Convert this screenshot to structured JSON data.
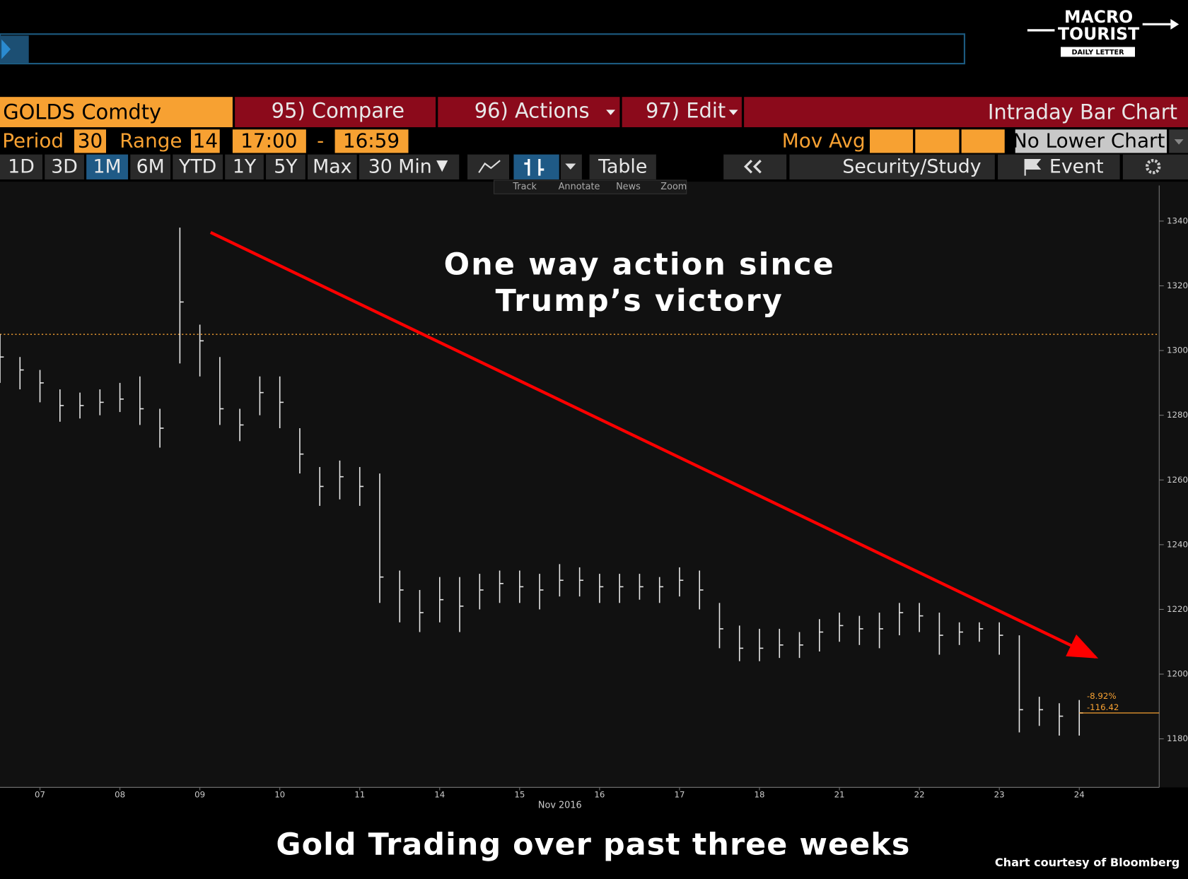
{
  "header": {
    "logo": [
      "MACRO",
      "TOURIST",
      "DAILY LETTER"
    ]
  },
  "toolbar": {
    "security": "GOLDS Comdty",
    "compare": "95) Compare",
    "actions": "96) Actions",
    "edit": "97) Edit",
    "view": "Intraday Bar Chart"
  },
  "settings": {
    "period_label": "Period",
    "period": "30",
    "range_label": "Range",
    "range": "14",
    "start": "17:00",
    "dash": "-",
    "end": "16:59",
    "mov_avg": "Mov Avg",
    "lower_chart": "No Lower Chart"
  },
  "buttons": [
    "1D",
    "3D",
    "1M",
    "6M",
    "YTD",
    "1Y",
    "5Y",
    "Max",
    "30 Min"
  ],
  "tools": [
    "Table",
    "Security/Study",
    "Event"
  ],
  "subtools": [
    "Track",
    "Annotate",
    "News",
    "Zoom"
  ],
  "chart_data": {
    "type": "bar",
    "annotation": [
      "One way action since",
      "Trump’s victory"
    ],
    "xlabel": "Nov 2016",
    "color": "#e6e6e6",
    "x": [
      -0.5,
      -0.25,
      0,
      0.25,
      0.5,
      0.75,
      1,
      1.25,
      1.5,
      1.75,
      2,
      2.25,
      2.5,
      2.75,
      3,
      3.25,
      3.5,
      3.75,
      4,
      4.25,
      4.5,
      4.75,
      5,
      5.25,
      5.5,
      5.75,
      6,
      6.25,
      6.5,
      6.75,
      7,
      7.25,
      7.5,
      7.75,
      8,
      8.25,
      8.5,
      8.75,
      9,
      9.25,
      9.5,
      9.75,
      10,
      10.25,
      10.5,
      10.75,
      11,
      11.25,
      11.5,
      11.75,
      12,
      12.25,
      12.5,
      12.75,
      13
    ],
    "values": [
      1298,
      1294,
      1290,
      1283,
      1283,
      1284,
      1285,
      1282,
      1276,
      1315,
      1303,
      1282,
      1277,
      1287,
      1284,
      1268,
      1258,
      1261,
      1258,
      1230,
      1226,
      1219,
      1223,
      1221,
      1226,
      1228,
      1227,
      1226,
      1229,
      1229,
      1227,
      1227,
      1227,
      1227,
      1229,
      1226,
      1214,
      1208,
      1208,
      1209,
      1209,
      1213,
      1215,
      1214,
      1214,
      1219,
      1218,
      1212,
      1213,
      1214,
      1212,
      1189,
      1189,
      1187,
      1188
    ],
    "high": [
      1305,
      1298,
      1294,
      1288,
      1287,
      1288,
      1290,
      1292,
      1282,
      1338,
      1308,
      1298,
      1282,
      1292,
      1292,
      1276,
      1264,
      1266,
      1264,
      1262,
      1232,
      1226,
      1230,
      1230,
      1231,
      1232,
      1232,
      1231,
      1234,
      1233,
      1231,
      1231,
      1231,
      1230,
      1233,
      1232,
      1222,
      1215,
      1214,
      1214,
      1213,
      1217,
      1219,
      1218,
      1219,
      1222,
      1222,
      1219,
      1216,
      1216,
      1216,
      1212,
      1193,
      1191,
      1192
    ],
    "low": [
      1290,
      1288,
      1284,
      1278,
      1279,
      1280,
      1281,
      1277,
      1270,
      1296,
      1292,
      1277,
      1272,
      1280,
      1276,
      1262,
      1252,
      1254,
      1252,
      1222,
      1216,
      1213,
      1216,
      1213,
      1220,
      1222,
      1222,
      1220,
      1224,
      1224,
      1222,
      1222,
      1223,
      1222,
      1224,
      1220,
      1208,
      1204,
      1204,
      1205,
      1205,
      1207,
      1210,
      1209,
      1208,
      1212,
      1213,
      1206,
      1209,
      1210,
      1206,
      1182,
      1184,
      1181,
      1181
    ],
    "xlim": [
      -0.5,
      14
    ],
    "ylim": [
      1165,
      1351
    ],
    "yticks": [
      1180,
      1200,
      1220,
      1240,
      1260,
      1280,
      1300,
      1320,
      1340
    ],
    "xticks": [
      {
        "value": 0,
        "label": "07"
      },
      {
        "value": 1,
        "label": "08"
      },
      {
        "value": 2,
        "label": "09"
      },
      {
        "value": 3,
        "label": "10"
      },
      {
        "value": 4,
        "label": "11"
      },
      {
        "value": 5,
        "label": "14"
      },
      {
        "value": 6,
        "label": "15"
      },
      {
        "value": 7,
        "label": "16"
      },
      {
        "value": 8,
        "label": "17"
      },
      {
        "value": 9,
        "label": "18"
      },
      {
        "value": 10,
        "label": "21"
      },
      {
        "value": 11,
        "label": "22"
      },
      {
        "value": 12,
        "label": "23"
      },
      {
        "value": 13,
        "label": "24"
      }
    ],
    "reference_line": 1305,
    "last_price": 1188,
    "change_labels": [
      "-8.92%",
      "-116.42"
    ],
    "accent": "#f7a132"
  },
  "caption": "Gold Trading over past three weeks",
  "credit": "Chart courtesy of Bloomberg"
}
